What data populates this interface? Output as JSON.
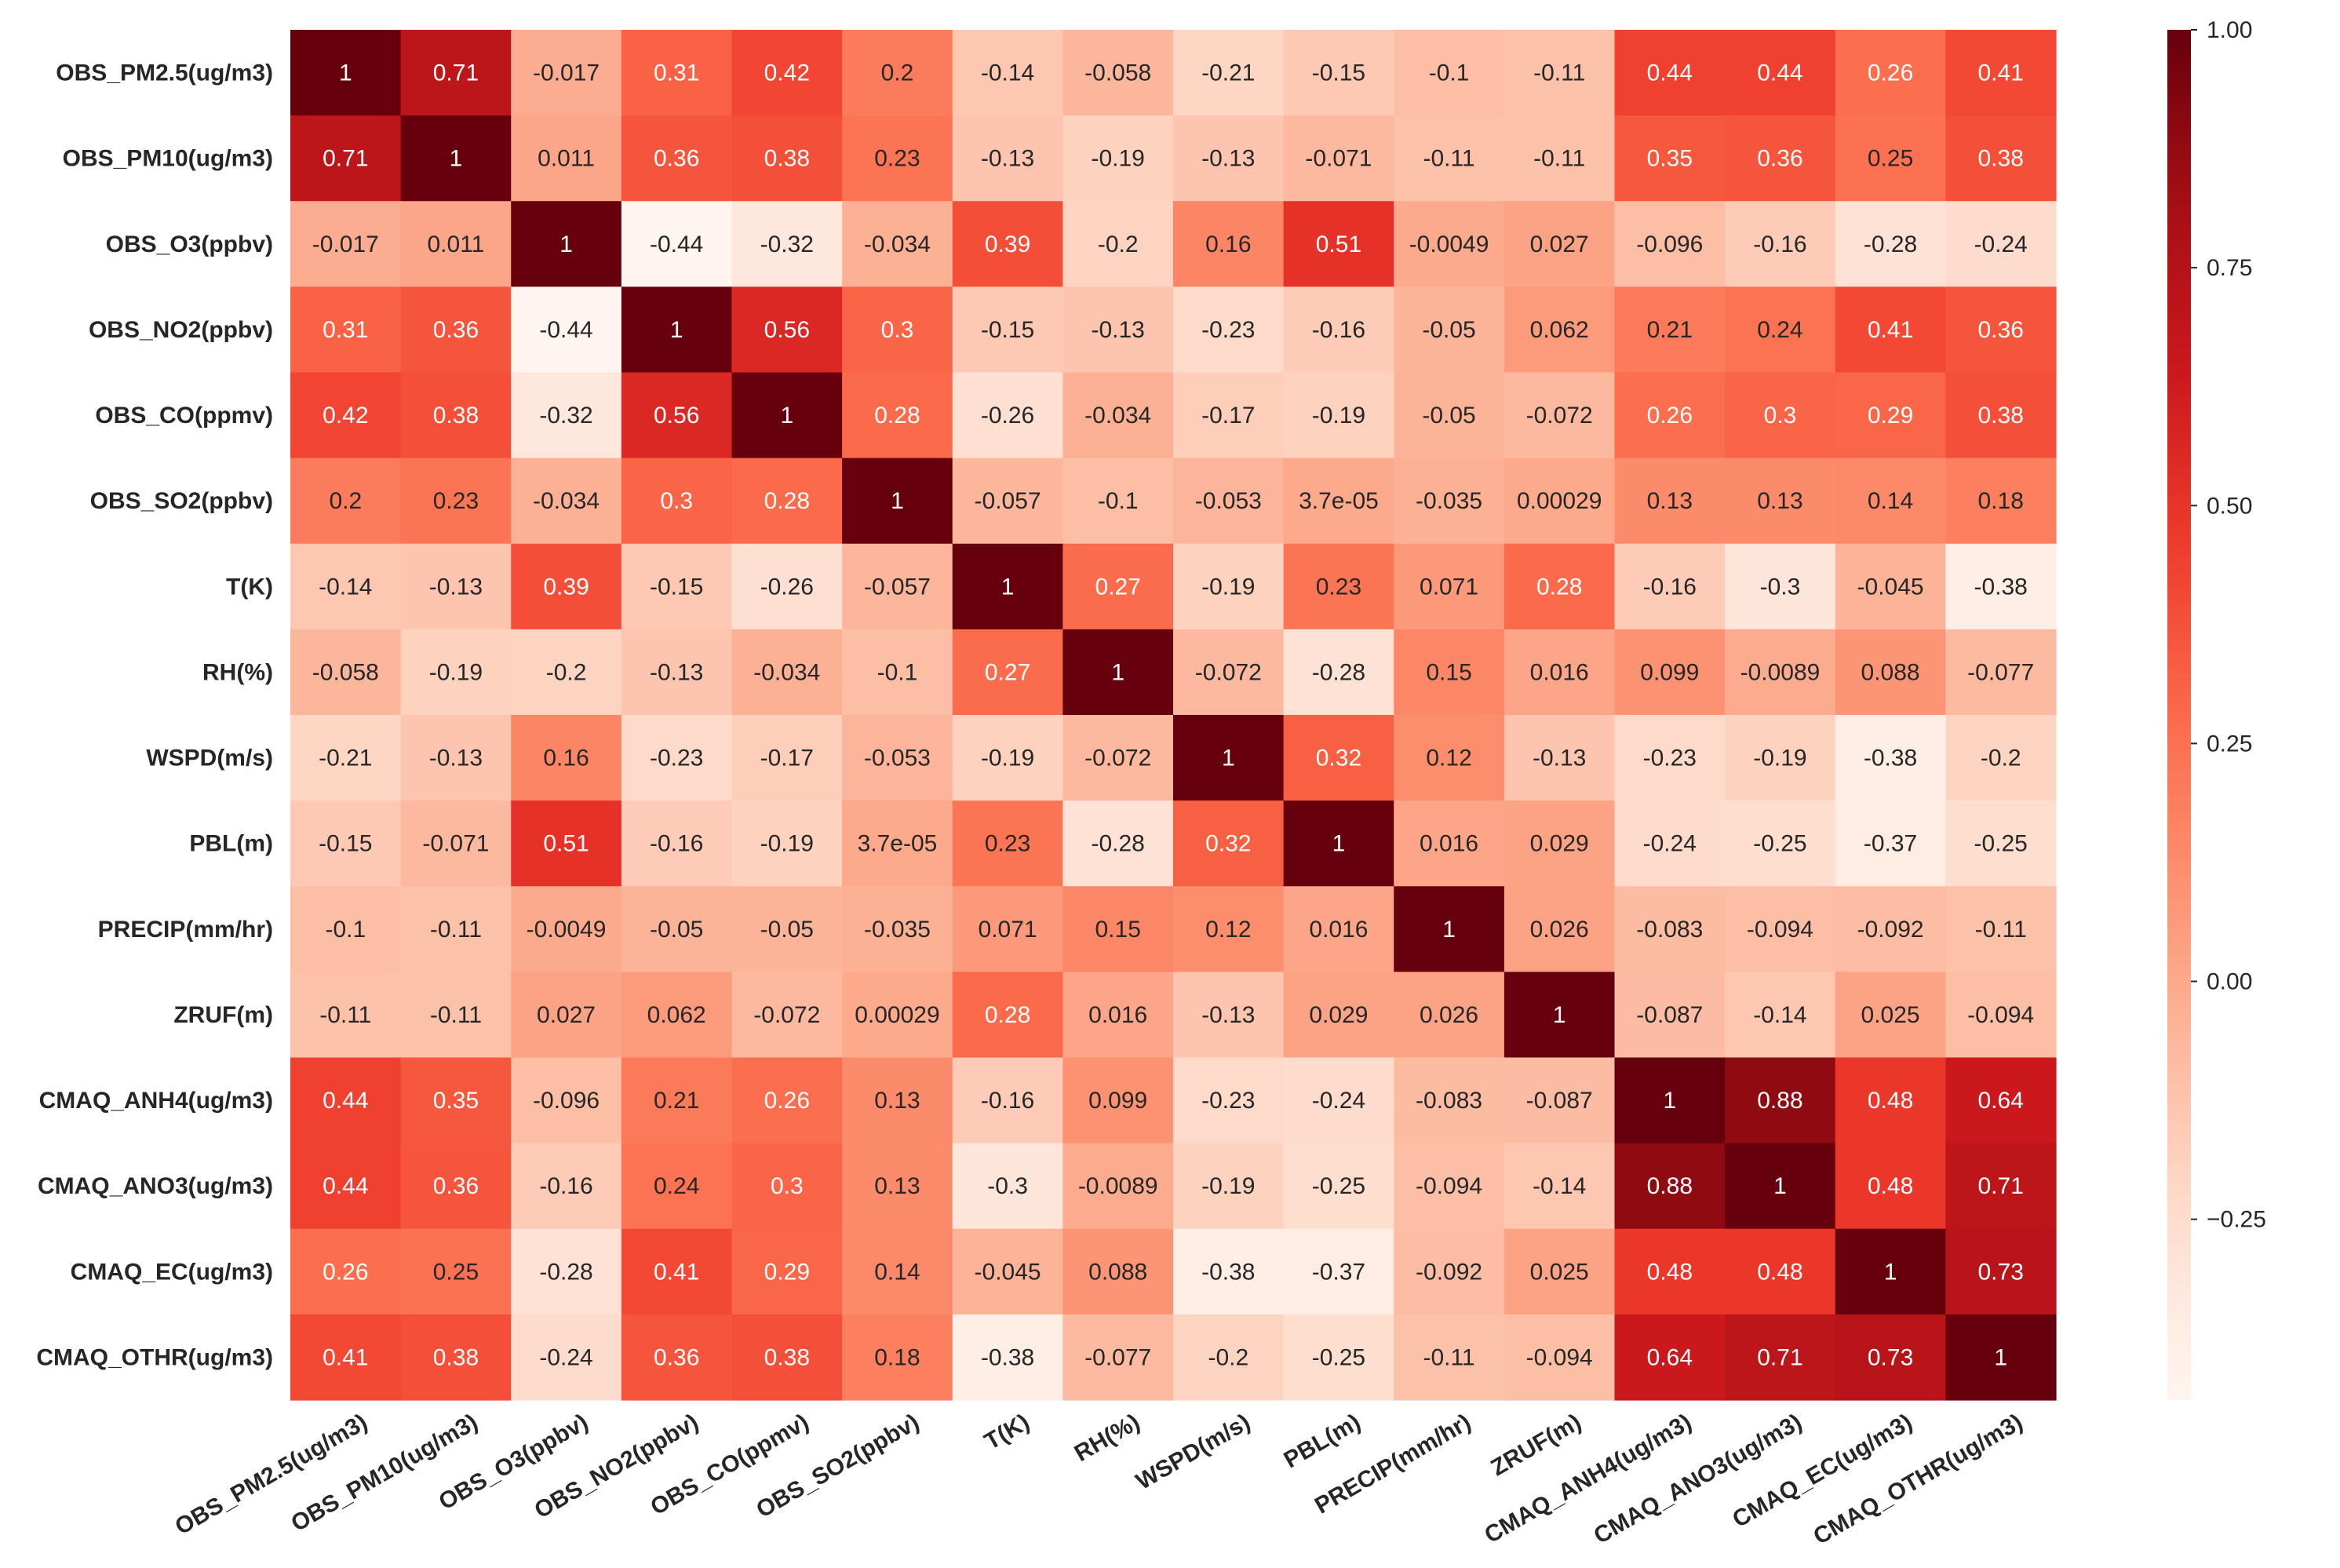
{
  "chart_data": {
    "type": "heatmap",
    "title": "",
    "xlabel": "",
    "ylabel": "",
    "colormap": "Reds",
    "vmin": -0.44,
    "vmax": 1.0,
    "labels": [
      "OBS_PM2.5(ug/m3)",
      "OBS_PM10(ug/m3)",
      "OBS_O3(ppbv)",
      "OBS_NO2(ppbv)",
      "OBS_CO(ppmv)",
      "OBS_SO2(ppbv)",
      "T(K)",
      "RH(%)",
      "WSPD(m/s)",
      "PBL(m)",
      "PRECIP(mm/hr)",
      "ZRUF(m)",
      "CMAQ_ANH4(ug/m3)",
      "CMAQ_ANO3(ug/m3)",
      "CMAQ_EC(ug/m3)",
      "CMAQ_OTHR(ug/m3)"
    ],
    "cell_text": [
      [
        "1",
        "0.71",
        "-0.017",
        "0.31",
        "0.42",
        "0.2",
        "-0.14",
        "-0.058",
        "-0.21",
        "-0.15",
        "-0.1",
        "-0.11",
        "0.44",
        "0.44",
        "0.26",
        "0.41"
      ],
      [
        "0.71",
        "1",
        "0.011",
        "0.36",
        "0.38",
        "0.23",
        "-0.13",
        "-0.19",
        "-0.13",
        "-0.071",
        "-0.11",
        "-0.11",
        "0.35",
        "0.36",
        "0.25",
        "0.38"
      ],
      [
        "-0.017",
        "0.011",
        "1",
        "-0.44",
        "-0.32",
        "-0.034",
        "0.39",
        "-0.2",
        "0.16",
        "0.51",
        "-0.0049",
        "0.027",
        "-0.096",
        "-0.16",
        "-0.28",
        "-0.24"
      ],
      [
        "0.31",
        "0.36",
        "-0.44",
        "1",
        "0.56",
        "0.3",
        "-0.15",
        "-0.13",
        "-0.23",
        "-0.16",
        "-0.05",
        "0.062",
        "0.21",
        "0.24",
        "0.41",
        "0.36"
      ],
      [
        "0.42",
        "0.38",
        "-0.32",
        "0.56",
        "1",
        "0.28",
        "-0.26",
        "-0.034",
        "-0.17",
        "-0.19",
        "-0.05",
        "-0.072",
        "0.26",
        "0.3",
        "0.29",
        "0.38"
      ],
      [
        "0.2",
        "0.23",
        "-0.034",
        "0.3",
        "0.28",
        "1",
        "-0.057",
        "-0.1",
        "-0.053",
        "3.7e-05",
        "-0.035",
        "0.00029",
        "0.13",
        "0.13",
        "0.14",
        "0.18"
      ],
      [
        "-0.14",
        "-0.13",
        "0.39",
        "-0.15",
        "-0.26",
        "-0.057",
        "1",
        "0.27",
        "-0.19",
        "0.23",
        "0.071",
        "0.28",
        "-0.16",
        "-0.3",
        "-0.045",
        "-0.38"
      ],
      [
        "-0.058",
        "-0.19",
        "-0.2",
        "-0.13",
        "-0.034",
        "-0.1",
        "0.27",
        "1",
        "-0.072",
        "-0.28",
        "0.15",
        "0.016",
        "0.099",
        "-0.0089",
        "0.088",
        "-0.077"
      ],
      [
        "-0.21",
        "-0.13",
        "0.16",
        "-0.23",
        "-0.17",
        "-0.053",
        "-0.19",
        "-0.072",
        "1",
        "0.32",
        "0.12",
        "-0.13",
        "-0.23",
        "-0.19",
        "-0.38",
        "-0.2"
      ],
      [
        "-0.15",
        "-0.071",
        "0.51",
        "-0.16",
        "-0.19",
        "3.7e-05",
        "0.23",
        "-0.28",
        "0.32",
        "1",
        "0.016",
        "0.029",
        "-0.24",
        "-0.25",
        "-0.37",
        "-0.25"
      ],
      [
        "-0.1",
        "-0.11",
        "-0.0049",
        "-0.05",
        "-0.05",
        "-0.035",
        "0.071",
        "0.15",
        "0.12",
        "0.016",
        "1",
        "0.026",
        "-0.083",
        "-0.094",
        "-0.092",
        "-0.11"
      ],
      [
        "-0.11",
        "-0.11",
        "0.027",
        "0.062",
        "-0.072",
        "0.00029",
        "0.28",
        "0.016",
        "-0.13",
        "0.029",
        "0.026",
        "1",
        "-0.087",
        "-0.14",
        "0.025",
        "-0.094"
      ],
      [
        "0.44",
        "0.35",
        "-0.096",
        "0.21",
        "0.26",
        "0.13",
        "-0.16",
        "0.099",
        "-0.23",
        "-0.24",
        "-0.083",
        "-0.087",
        "1",
        "0.88",
        "0.48",
        "0.64"
      ],
      [
        "0.44",
        "0.36",
        "-0.16",
        "0.24",
        "0.3",
        "0.13",
        "-0.3",
        "-0.0089",
        "-0.19",
        "-0.25",
        "-0.094",
        "-0.14",
        "0.88",
        "1",
        "0.48",
        "0.71"
      ],
      [
        "0.26",
        "0.25",
        "-0.28",
        "0.41",
        "0.29",
        "0.14",
        "-0.045",
        "0.088",
        "-0.38",
        "-0.37",
        "-0.092",
        "0.025",
        "0.48",
        "0.48",
        "1",
        "0.73"
      ],
      [
        "0.41",
        "0.38",
        "-0.24",
        "0.36",
        "0.38",
        "0.18",
        "-0.38",
        "-0.077",
        "-0.2",
        "-0.25",
        "-0.11",
        "-0.094",
        "0.64",
        "0.71",
        "0.73",
        "1"
      ]
    ],
    "colorbar": {
      "ticks": [
        1.0,
        0.75,
        0.5,
        0.25,
        0.0,
        -0.25
      ],
      "tick_labels": [
        "1.00",
        "0.75",
        "0.50",
        "0.25",
        "0.00",
        "−0.25"
      ]
    },
    "grid": false
  }
}
